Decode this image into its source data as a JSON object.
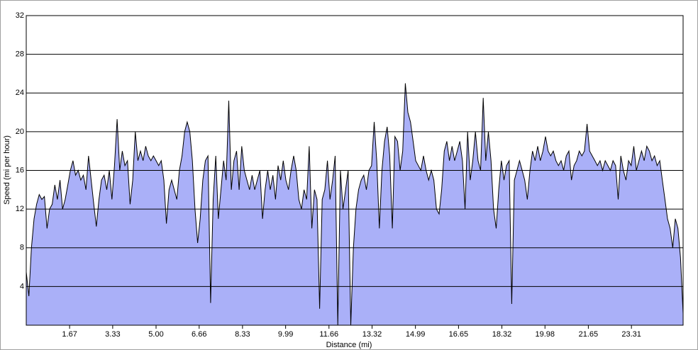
{
  "chart_data": {
    "type": "area",
    "xlabel": "Distance (mi)",
    "ylabel": "Speed (mi per hour)",
    "color": "#aab0f8",
    "line_color": "#000000",
    "grid": true,
    "xlim": [
      0,
      25.3
    ],
    "ylim": [
      0,
      32
    ],
    "xticks": [
      1.67,
      3.33,
      {
        "value": 5,
        "label": "5.00"
      },
      6.66,
      8.33,
      9.99,
      11.66,
      13.32,
      14.99,
      16.65,
      18.32,
      19.98,
      21.65,
      23.31
    ],
    "yticks": [
      4,
      8,
      12,
      16,
      20,
      24,
      28,
      32
    ],
    "x": [
      0,
      0.1,
      0.2,
      0.3,
      0.4,
      0.5,
      0.6,
      0.7,
      0.8,
      0.9,
      1,
      1.1,
      1.2,
      1.3,
      1.4,
      1.5,
      1.6,
      1.7,
      1.8,
      1.9,
      2,
      2.1,
      2.2,
      2.3,
      2.4,
      2.5,
      2.6,
      2.7,
      2.8,
      2.9,
      3,
      3.1,
      3.2,
      3.3,
      3.4,
      3.5,
      3.6,
      3.7,
      3.8,
      3.9,
      4,
      4.1,
      4.2,
      4.3,
      4.4,
      4.5,
      4.6,
      4.7,
      4.8,
      4.9,
      5,
      5.1,
      5.2,
      5.3,
      5.4,
      5.5,
      5.6,
      5.7,
      5.8,
      5.9,
      6,
      6.1,
      6.2,
      6.3,
      6.4,
      6.5,
      6.6,
      6.7,
      6.8,
      6.9,
      7,
      7.1,
      7.2,
      7.3,
      7.4,
      7.5,
      7.6,
      7.7,
      7.8,
      7.9,
      8,
      8.1,
      8.2,
      8.3,
      8.4,
      8.5,
      8.6,
      8.7,
      8.8,
      8.9,
      9,
      9.1,
      9.2,
      9.3,
      9.4,
      9.5,
      9.6,
      9.7,
      9.8,
      9.9,
      10,
      10.1,
      10.2,
      10.3,
      10.4,
      10.5,
      10.6,
      10.7,
      10.8,
      10.9,
      11,
      11.1,
      11.2,
      11.3,
      11.4,
      11.5,
      11.6,
      11.7,
      11.8,
      11.9,
      12,
      12.1,
      12.2,
      12.3,
      12.4,
      12.5,
      12.6,
      12.7,
      12.8,
      12.9,
      13,
      13.1,
      13.2,
      13.3,
      13.4,
      13.5,
      13.6,
      13.7,
      13.8,
      13.9,
      14,
      14.1,
      14.2,
      14.3,
      14.4,
      14.5,
      14.6,
      14.7,
      14.8,
      14.9,
      15,
      15.1,
      15.2,
      15.3,
      15.4,
      15.5,
      15.6,
      15.7,
      15.8,
      15.9,
      16,
      16.1,
      16.2,
      16.3,
      16.4,
      16.5,
      16.6,
      16.7,
      16.8,
      16.9,
      17,
      17.1,
      17.2,
      17.3,
      17.4,
      17.5,
      17.6,
      17.7,
      17.8,
      17.9,
      18,
      18.1,
      18.2,
      18.3,
      18.4,
      18.5,
      18.6,
      18.7,
      18.8,
      18.9,
      19,
      19.1,
      19.2,
      19.3,
      19.4,
      19.5,
      19.6,
      19.7,
      19.8,
      19.9,
      20,
      20.1,
      20.2,
      20.3,
      20.4,
      20.5,
      20.6,
      20.7,
      20.8,
      20.9,
      21,
      21.1,
      21.2,
      21.3,
      21.4,
      21.5,
      21.6,
      21.7,
      21.8,
      21.9,
      22,
      22.1,
      22.2,
      22.3,
      22.4,
      22.5,
      22.6,
      22.7,
      22.8,
      22.9,
      23,
      23.1,
      23.2,
      23.3,
      23.4,
      23.5,
      23.6,
      23.7,
      23.8,
      23.9,
      24,
      24.1,
      24.2,
      24.3,
      24.4,
      24.5,
      24.6,
      24.7,
      24.8,
      24.9,
      25,
      25.1,
      25.2,
      25.3
    ],
    "values": [
      5.5,
      3,
      8,
      11,
      12.5,
      13.5,
      13,
      13.3,
      10,
      12,
      12.5,
      14.5,
      13,
      15,
      12,
      13,
      14.5,
      16,
      17,
      15.5,
      16,
      15,
      15.5,
      14,
      17.5,
      15,
      12.5,
      10.2,
      13,
      15,
      15.5,
      14,
      16,
      13,
      16.5,
      21.3,
      16,
      18,
      16.5,
      17,
      12.5,
      15,
      20,
      17,
      18,
      17,
      18.5,
      17.5,
      17,
      17.5,
      17,
      16.5,
      17,
      15,
      10.5,
      14,
      15,
      14,
      13,
      16,
      17.5,
      20,
      21,
      20,
      17,
      12,
      8.5,
      11,
      15,
      17,
      17.5,
      2.3,
      13,
      17.5,
      11,
      14,
      17,
      15,
      23.2,
      14,
      17,
      18,
      14,
      18.5,
      16,
      15,
      14,
      15.5,
      14,
      15,
      16,
      11,
      14,
      16,
      14,
      15.5,
      13,
      16.5,
      15,
      17,
      15,
      14,
      16,
      17.5,
      16,
      13,
      12,
      14,
      13,
      18.5,
      10,
      14,
      13,
      1.7,
      13,
      14,
      17,
      13,
      15,
      17.5,
      0,
      16,
      12,
      14,
      16,
      0,
      8,
      12,
      14,
      15,
      15.5,
      14,
      16,
      16.5,
      21,
      17,
      10,
      16,
      19,
      20.5,
      17.5,
      10,
      19.5,
      19,
      16,
      18,
      25,
      22,
      21,
      19,
      17,
      16.5,
      16,
      17.5,
      16,
      15,
      16,
      15,
      12,
      11.5,
      14,
      18,
      19,
      17,
      18.5,
      17,
      18,
      19,
      17,
      12,
      20,
      15,
      17,
      20,
      17,
      16,
      23.5,
      17,
      20,
      17,
      12,
      10,
      14,
      17,
      15,
      16.5,
      17,
      2.2,
      15,
      16,
      17,
      16,
      15,
      13,
      16,
      18,
      17,
      18.5,
      17,
      18,
      19.5,
      18,
      17.5,
      18,
      17,
      16.5,
      17,
      16,
      17.5,
      18,
      15,
      16.5,
      17,
      18,
      17.5,
      18,
      20.8,
      18,
      17.5,
      17,
      16.5,
      17,
      16,
      17,
      16.5,
      16,
      17,
      16.5,
      13,
      17.5,
      16,
      15,
      17,
      16.5,
      18.5,
      16,
      17,
      18,
      17,
      18.5,
      18,
      17,
      17.5,
      16.5,
      17,
      15,
      13,
      11,
      10,
      8,
      11,
      10,
      7,
      1.2
    ]
  }
}
